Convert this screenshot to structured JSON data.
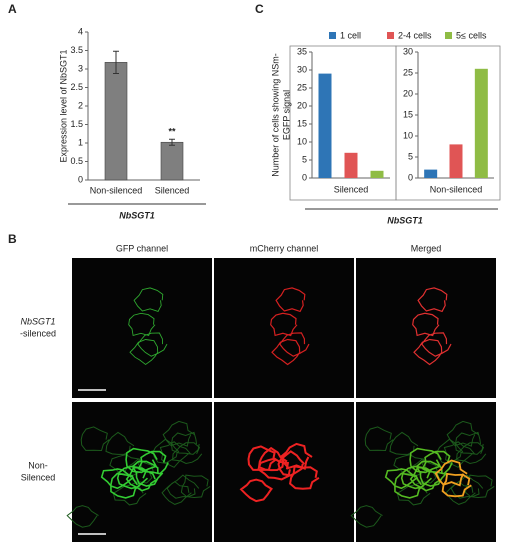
{
  "chart_data": [
    {
      "type": "bar",
      "label": "A",
      "ylabel": "Expression level of NbSGT1",
      "xlabel": "NbSGT1",
      "categories": [
        "Non-silenced",
        "Silenced"
      ],
      "values": [
        3.18,
        1.02
      ],
      "errors": [
        0.3,
        0.08
      ],
      "annotation": "**",
      "color": "#7f7f7f",
      "ylim": [
        0,
        4
      ],
      "yticks": [
        0,
        0.5,
        1,
        1.5,
        2,
        2.5,
        3,
        3.5,
        4
      ]
    },
    {
      "type": "panel-bar",
      "label": "C",
      "ylabel": [
        "Number of cells showing NSm-",
        "EGFP signal"
      ],
      "xlabel": "NbSGT1",
      "categories": [
        "Silenced",
        "Non-silenced"
      ],
      "series": [
        {
          "name": "1 cell",
          "color": "#2e75b6",
          "values": [
            29,
            2
          ]
        },
        {
          "name": "2-4 cells",
          "color": "#e05555",
          "values": [
            7,
            8
          ]
        },
        {
          "name": "5≤ cells",
          "color": "#8fbc45",
          "values": [
            2,
            26
          ]
        }
      ],
      "panels": [
        {
          "ylim": [
            0,
            35
          ],
          "yticks": [
            0,
            5,
            10,
            15,
            20,
            25,
            30,
            35
          ]
        },
        {
          "ylim": [
            0,
            30
          ],
          "yticks": [
            0,
            5,
            10,
            15,
            20,
            25,
            30
          ]
        }
      ]
    }
  ],
  "panel_b": {
    "label": "B",
    "columns": [
      "GFP channel",
      "mCherry channel",
      "Merged"
    ],
    "rows": [
      [
        "NbSGT1",
        "-silenced"
      ],
      [
        "Non-",
        "Silenced"
      ]
    ]
  }
}
